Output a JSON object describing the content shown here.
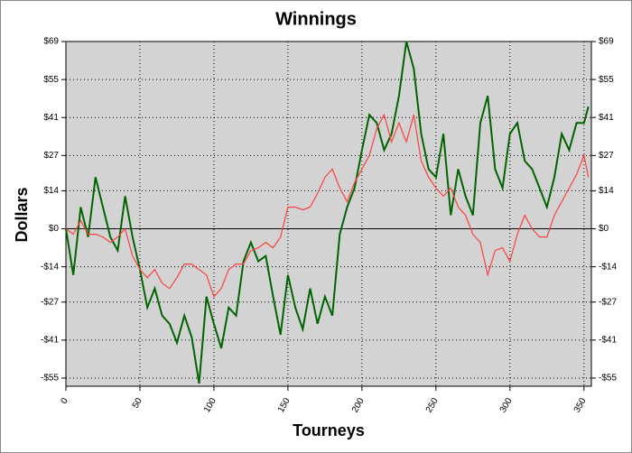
{
  "chart_data": {
    "type": "line",
    "title": "Winnings",
    "x_label": "Tourneys",
    "y_label": "Dollars",
    "x": [
      0,
      5,
      10,
      15,
      20,
      25,
      30,
      35,
      40,
      45,
      50,
      55,
      60,
      65,
      70,
      75,
      80,
      85,
      90,
      95,
      100,
      105,
      110,
      115,
      120,
      125,
      130,
      135,
      140,
      145,
      150,
      155,
      160,
      165,
      170,
      175,
      180,
      185,
      190,
      195,
      200,
      205,
      210,
      215,
      220,
      225,
      230,
      235,
      240,
      245,
      250,
      255,
      260,
      265,
      270,
      275,
      280,
      285,
      290,
      295,
      300,
      305,
      310,
      315,
      320,
      325,
      330,
      335,
      340,
      345,
      350,
      353
    ],
    "series": [
      {
        "color": "#006400",
        "values": [
          0,
          -17,
          8,
          -3,
          19,
          8,
          -3,
          -8,
          12,
          -3,
          -15,
          -29,
          -22,
          -32,
          -35,
          -42,
          -32,
          -40,
          -57,
          -25,
          -35,
          -44,
          -29,
          -32,
          -12,
          -5,
          -12,
          -10,
          -25,
          -39,
          -17,
          -29,
          -37,
          -22,
          -35,
          -25,
          -32,
          -2,
          8,
          15,
          29,
          42,
          39,
          29,
          35,
          49,
          69,
          59,
          35,
          22,
          19,
          35,
          5,
          22,
          12,
          5,
          39,
          49,
          22,
          15,
          35,
          39,
          25,
          22,
          15,
          8,
          19,
          35,
          29,
          39,
          39,
          45
        ]
      },
      {
        "color": "#ff4040",
        "values": [
          0,
          -2,
          3,
          -2,
          -2,
          -3,
          -5,
          -3,
          0,
          -10,
          -15,
          -18,
          -15,
          -20,
          -22,
          -18,
          -13,
          -13,
          -15,
          -17,
          -25,
          -22,
          -15,
          -13,
          -13,
          -8,
          -7,
          -5,
          -7,
          -3,
          8,
          8,
          7,
          8,
          13,
          19,
          22,
          15,
          10,
          17,
          22,
          27,
          37,
          42,
          32,
          39,
          32,
          42,
          25,
          19,
          15,
          12,
          15,
          8,
          5,
          -2,
          -5,
          -17,
          -8,
          -7,
          -12,
          -2,
          5,
          0,
          -3,
          -3,
          5,
          10,
          15,
          20,
          27,
          19
        ]
      }
    ],
    "xlim": [
      0,
      355
    ],
    "xticks": [
      0,
      50,
      100,
      150,
      200,
      250,
      300,
      350
    ],
    "ylim": [
      -58,
      69
    ],
    "yticks": [
      {
        "value": 69,
        "label": "$69"
      },
      {
        "value": 55,
        "label": "$55"
      },
      {
        "value": 41,
        "label": "$41"
      },
      {
        "value": 27,
        "label": "$27"
      },
      {
        "value": 14,
        "label": "$14"
      },
      {
        "value": 0,
        "label": "$0"
      },
      {
        "value": -14,
        "label": "-$14"
      },
      {
        "value": -27,
        "label": "-$27"
      },
      {
        "value": -41,
        "label": "-$41"
      },
      {
        "value": -55,
        "label": "-$55"
      }
    ],
    "grid": true,
    "background": "#d3d3d3"
  }
}
